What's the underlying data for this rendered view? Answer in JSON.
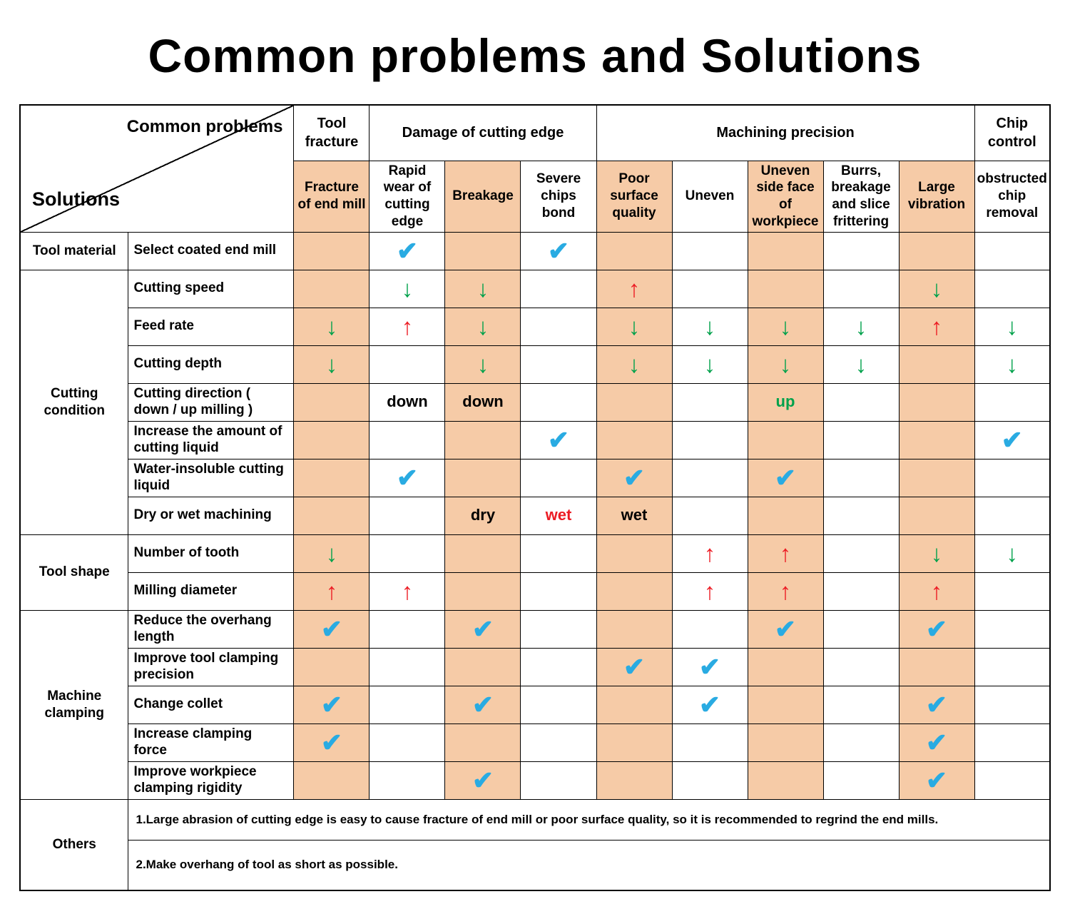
{
  "page_title": "Common problems and Solutions",
  "colors": {
    "shade": "#F6CBA7",
    "check_blue": "#29ABE2",
    "arrow_green": "#00A14B",
    "arrow_red": "#EC1C24"
  },
  "corner": {
    "top_label": "Common problems",
    "bottom_label": "Solutions"
  },
  "column_groups": [
    {
      "label": "Tool fracture",
      "span": 1
    },
    {
      "label": "Damage of cutting edge",
      "span": 3
    },
    {
      "label": "Machining precision",
      "span": 5
    },
    {
      "label": "Chip control",
      "span": 1
    }
  ],
  "columns": [
    {
      "label": "Fracture of end mill",
      "shaded": true
    },
    {
      "label": "Rapid wear of cutting edge",
      "shaded": false
    },
    {
      "label": "Breakage",
      "shaded": true
    },
    {
      "label": "Severe chips bond",
      "shaded": false
    },
    {
      "label": "Poor surface quality",
      "shaded": true
    },
    {
      "label": "Uneven",
      "shaded": false
    },
    {
      "label": "Uneven side face of workpiece",
      "shaded": true
    },
    {
      "label": "Burrs, breakage and slice frittering",
      "shaded": false
    },
    {
      "label": "Large vibration",
      "shaded": true
    },
    {
      "label": "obstructed chip removal",
      "shaded": false
    }
  ],
  "symbols": {
    "C": {
      "glyph": "✔",
      "color": "#29ABE2",
      "class": "check",
      "name": "check-icon"
    },
    "D": {
      "glyph": "↓",
      "color": "#00A14B",
      "class": "arrow",
      "name": "arrow-down-icon"
    },
    "U": {
      "glyph": "↑",
      "color": "#EC1C24",
      "class": "arrow",
      "name": "arrow-up-icon"
    },
    "down": {
      "glyph": "down",
      "color": "#000000",
      "class": "word",
      "name": "value-text-down"
    },
    "up": {
      "glyph": "up",
      "color": "#00A14B",
      "class": "word",
      "name": "value-text-up"
    },
    "dry": {
      "glyph": "dry",
      "color": "#000000",
      "class": "word",
      "name": "value-text-dry"
    },
    "wet": {
      "glyph": "wet",
      "color": "#000000",
      "class": "word",
      "name": "value-text-wet"
    },
    "wet-red": {
      "glyph": "wet",
      "color": "#EC1C24",
      "class": "word",
      "name": "value-text-wet"
    }
  },
  "row_groups": [
    {
      "label": "Tool material",
      "rows": [
        {
          "label": "Select coated end mill",
          "cells": [
            "",
            "C",
            "",
            "C",
            "",
            "",
            "",
            "",
            "",
            ""
          ]
        }
      ]
    },
    {
      "label": "Cutting condition",
      "rows": [
        {
          "label": "Cutting speed",
          "cells": [
            "",
            "D",
            "D",
            "",
            "U",
            "",
            "",
            "",
            "D",
            ""
          ]
        },
        {
          "label": "Feed rate",
          "cells": [
            "D",
            "U",
            "D",
            "",
            "D",
            "D",
            "D",
            "D",
            "U",
            "D"
          ]
        },
        {
          "label": "Cutting depth",
          "cells": [
            "D",
            "",
            "D",
            "",
            "D",
            "D",
            "D",
            "D",
            "",
            "D"
          ]
        },
        {
          "label": "Cutting direction ( down / up milling )",
          "cells": [
            "",
            "down",
            "down",
            "",
            "",
            "",
            "up",
            "",
            "",
            ""
          ]
        },
        {
          "label": "Increase the amount of cutting liquid",
          "cells": [
            "",
            "",
            "",
            "C",
            "",
            "",
            "",
            "",
            "",
            "C"
          ]
        },
        {
          "label": "Water-insoluble cutting liquid",
          "cells": [
            "",
            "C",
            "",
            "",
            "C",
            "",
            "C",
            "",
            "",
            ""
          ]
        },
        {
          "label": "Dry or wet machining",
          "cells": [
            "",
            "",
            "dry",
            "wet-red",
            "wet",
            "",
            "",
            "",
            "",
            ""
          ]
        }
      ]
    },
    {
      "label": "Tool shape",
      "rows": [
        {
          "label": "Number of tooth",
          "cells": [
            "D",
            "",
            "",
            "",
            "",
            "U",
            "U",
            "",
            "D",
            "D"
          ]
        },
        {
          "label": "Milling diameter",
          "cells": [
            "U",
            "U",
            "",
            "",
            "",
            "U",
            "U",
            "",
            "U",
            ""
          ]
        }
      ]
    },
    {
      "label": "Machine clamping",
      "rows": [
        {
          "label": "Reduce the overhang length",
          "cells": [
            "C",
            "",
            "C",
            "",
            "",
            "",
            "C",
            "",
            "C",
            ""
          ]
        },
        {
          "label": "Improve tool clamping precision",
          "cells": [
            "",
            "",
            "",
            "",
            "C",
            "C",
            "",
            "",
            "",
            ""
          ]
        },
        {
          "label": "Change collet",
          "cells": [
            "C",
            "",
            "C",
            "",
            "",
            "C",
            "",
            "",
            "C",
            ""
          ]
        },
        {
          "label": "Increase clamping force",
          "cells": [
            "C",
            "",
            "",
            "",
            "",
            "",
            "",
            "",
            "C",
            ""
          ]
        },
        {
          "label": "Improve workpiece clamping rigidity",
          "cells": [
            "",
            "",
            "C",
            "",
            "",
            "",
            "",
            "",
            "C",
            ""
          ]
        }
      ]
    },
    {
      "label": "Others",
      "notes": [
        "1.Large abrasion of cutting edge is easy to cause fracture of end mill or poor surface quality, so it is recommended to regrind the end mills.",
        "2.Make overhang of tool as short as possible."
      ]
    }
  ]
}
